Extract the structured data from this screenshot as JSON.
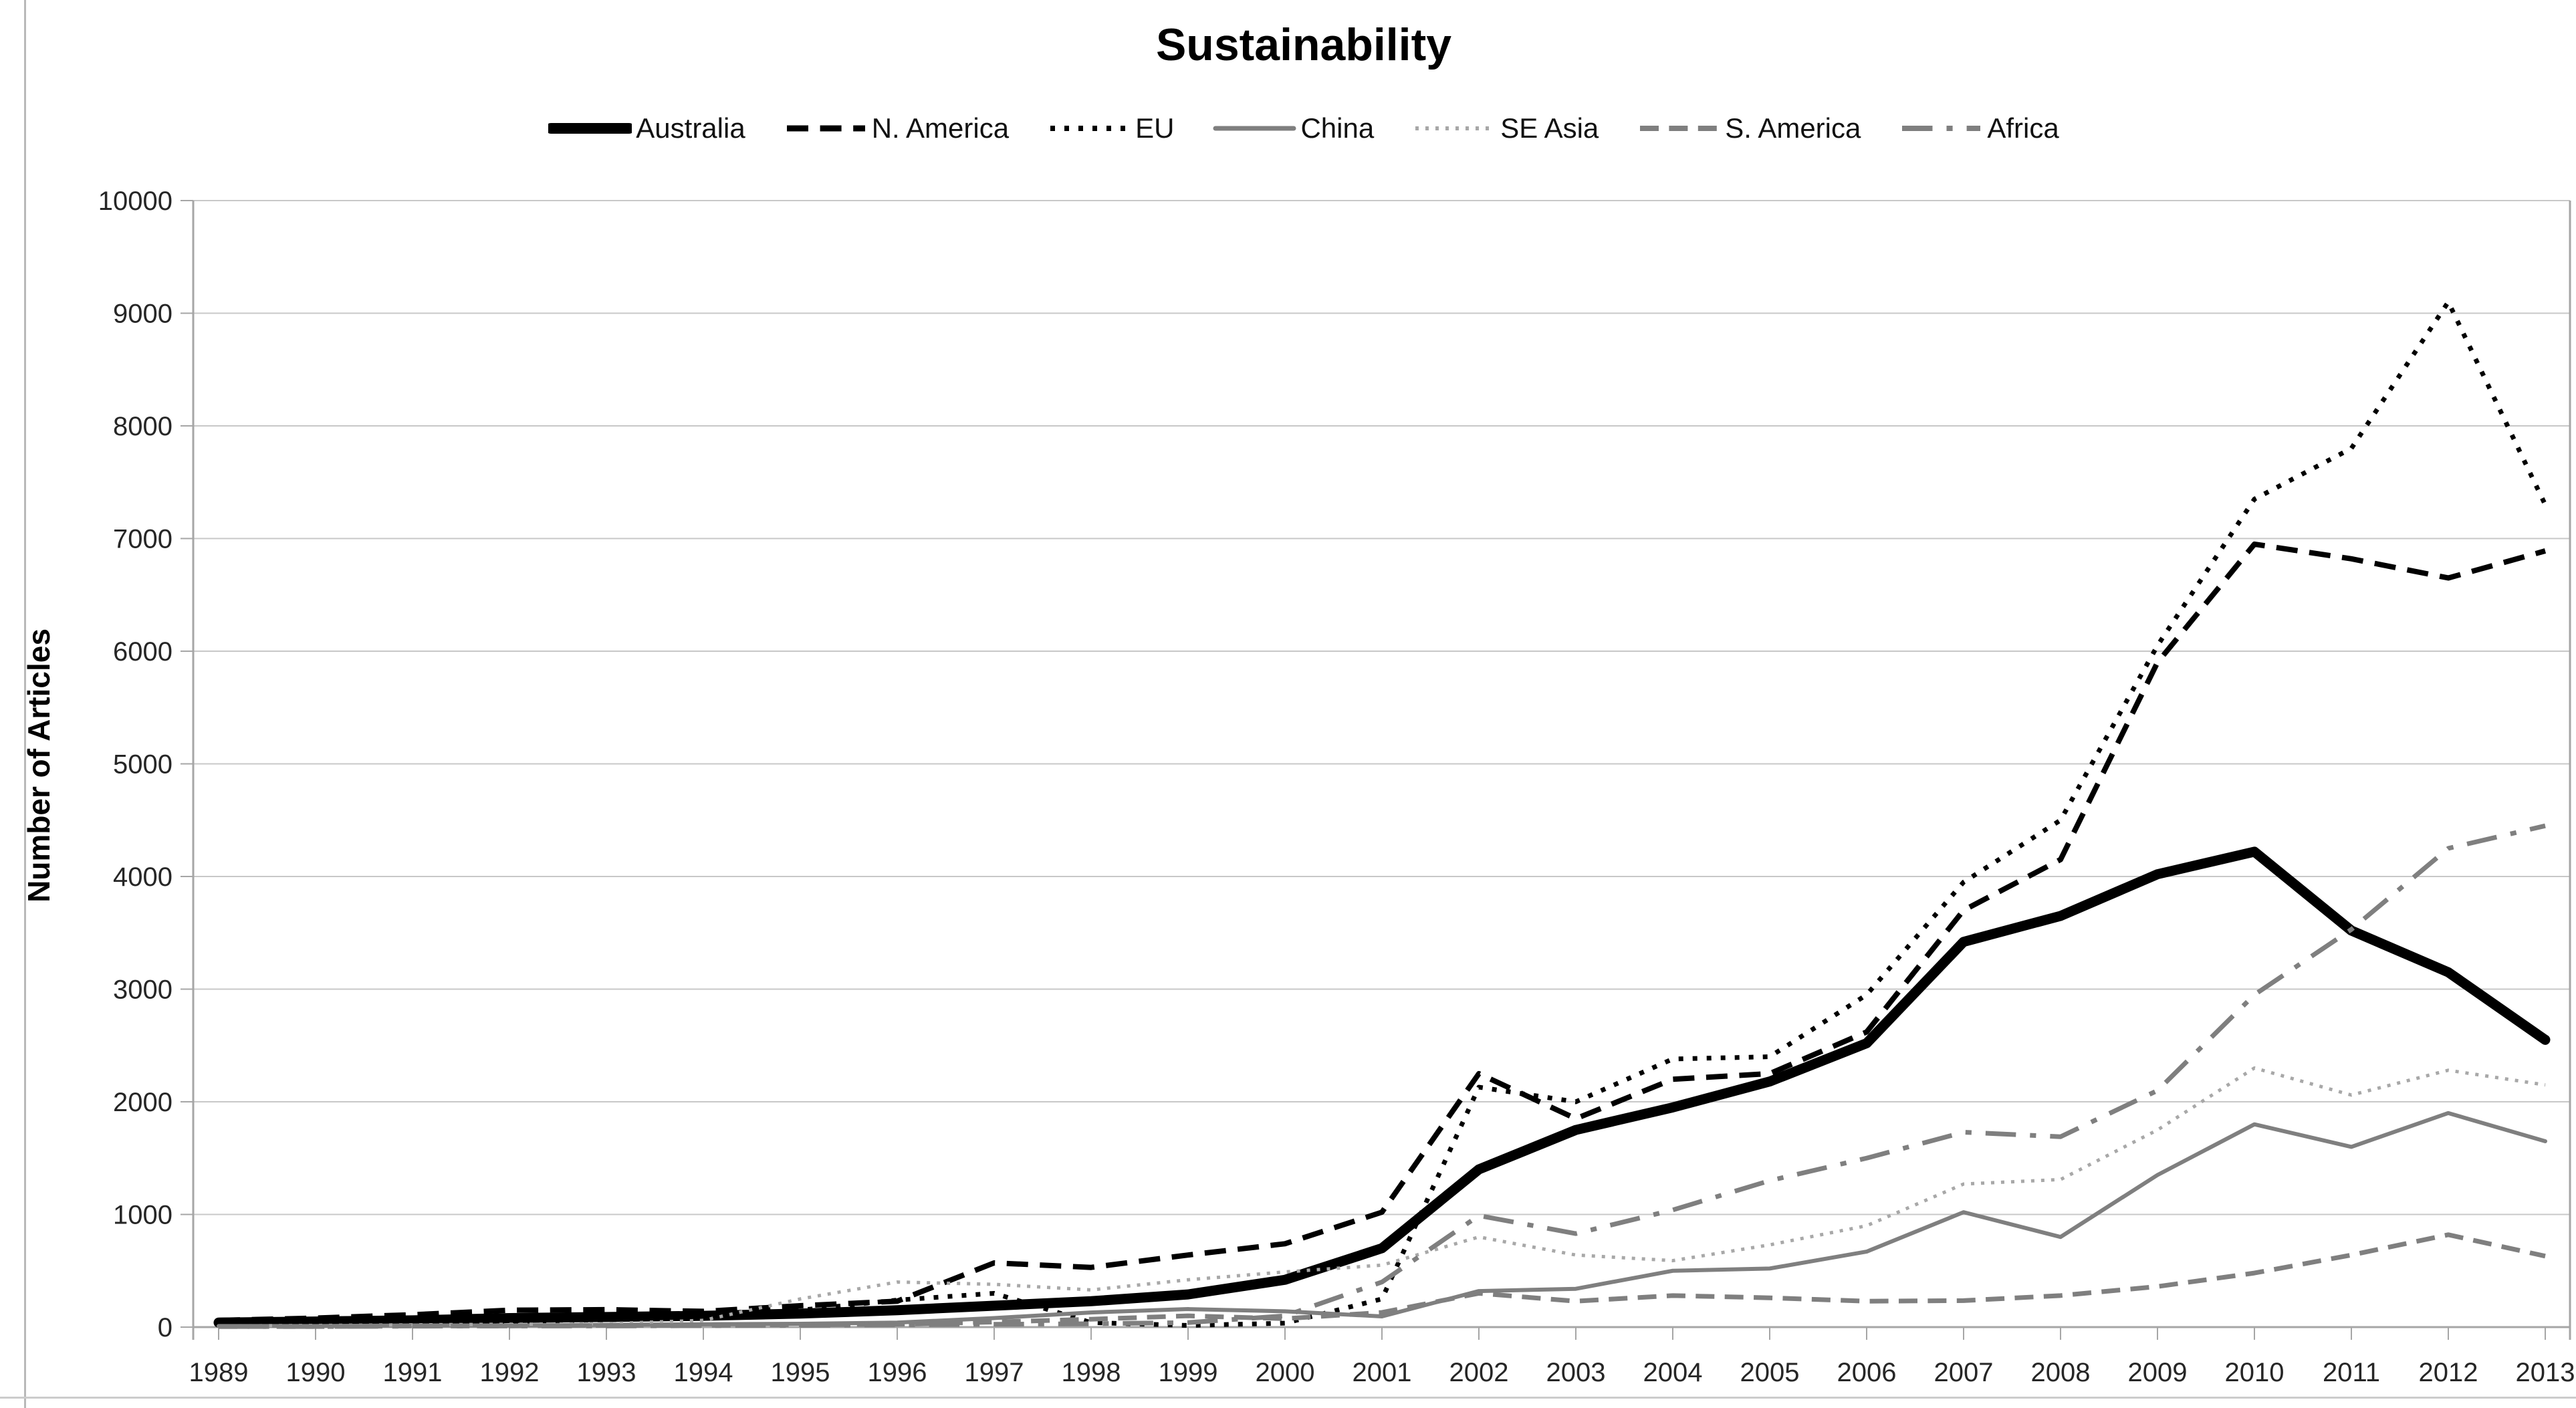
{
  "figure": {
    "background": "#ffffff",
    "border_color": "#b9b9b9"
  },
  "chart_data": {
    "type": "line",
    "title": "Sustainability",
    "xlabel": "",
    "ylabel": "Number of Articles",
    "ylim": [
      0,
      10000
    ],
    "ytick_step": 1000,
    "yticks": [
      0,
      1000,
      2000,
      3000,
      4000,
      5000,
      6000,
      7000,
      8000,
      9000,
      10000
    ],
    "grid": true,
    "grid_color": "#c8c8c8",
    "axis_color": "#a6a6a6",
    "tick_label_color": "#262626",
    "legend_position": "top",
    "categories": [
      "1989",
      "1990",
      "1991",
      "1992",
      "1993",
      "1994",
      "1995",
      "1996",
      "1997",
      "1998",
      "1999",
      "2000",
      "2001",
      "2002",
      "2003",
      "2004",
      "2005",
      "2006",
      "2007",
      "2008",
      "2009",
      "2010",
      "2011",
      "2012",
      "2013"
    ],
    "series": [
      {
        "name": "Australia",
        "color": "#000000",
        "style": "solid",
        "width": 15,
        "values": [
          40,
          50,
          60,
          80,
          90,
          100,
          120,
          150,
          190,
          230,
          290,
          420,
          700,
          1400,
          1750,
          1950,
          2180,
          2520,
          3420,
          3650,
          4020,
          4220,
          3520,
          3150,
          2550
        ]
      },
      {
        "name": "N. America",
        "color": "#000000",
        "style": "dashed",
        "width": 8,
        "values": [
          60,
          80,
          110,
          150,
          155,
          140,
          190,
          230,
          570,
          530,
          640,
          740,
          1020,
          2250,
          1850,
          2200,
          2250,
          2620,
          3700,
          4150,
          5900,
          6950,
          6820,
          6650,
          6890
        ]
      },
      {
        "name": "EU",
        "color": "#000000",
        "style": "dotted",
        "width": 7,
        "values": [
          20,
          25,
          35,
          50,
          65,
          80,
          150,
          240,
          300,
          40,
          15,
          35,
          250,
          2130,
          2000,
          2380,
          2400,
          2950,
          3950,
          4500,
          6050,
          7350,
          7800,
          9100,
          7300
        ]
      },
      {
        "name": "China",
        "color": "#7f7f7f",
        "style": "solid",
        "width": 6,
        "values": [
          10,
          10,
          15,
          15,
          20,
          25,
          30,
          40,
          80,
          130,
          160,
          140,
          95,
          320,
          340,
          500,
          520,
          670,
          1020,
          800,
          1350,
          1800,
          1600,
          1900,
          1650
        ]
      },
      {
        "name": "SE Asia",
        "color": "#a8a8a8",
        "style": "dotted",
        "width": 5,
        "values": [
          10,
          15,
          20,
          25,
          30,
          60,
          250,
          400,
          380,
          330,
          420,
          490,
          550,
          800,
          640,
          590,
          730,
          900,
          1270,
          1310,
          1750,
          2300,
          2060,
          2280,
          2150
        ]
      },
      {
        "name": "S. America",
        "color": "#7f7f7f",
        "style": "dashed",
        "width": 7,
        "values": [
          5,
          5,
          10,
          10,
          15,
          15,
          20,
          25,
          45,
          70,
          100,
          75,
          130,
          300,
          230,
          280,
          260,
          230,
          235,
          280,
          360,
          480,
          640,
          820,
          630
        ]
      },
      {
        "name": "Africa",
        "color": "#7f7f7f",
        "style": "dashdot",
        "width": 7,
        "values": [
          5,
          5,
          8,
          10,
          10,
          12,
          15,
          20,
          25,
          30,
          40,
          100,
          400,
          990,
          830,
          1040,
          1300,
          1500,
          1730,
          1690,
          2100,
          2950,
          3530,
          4250,
          4450
        ]
      }
    ]
  }
}
